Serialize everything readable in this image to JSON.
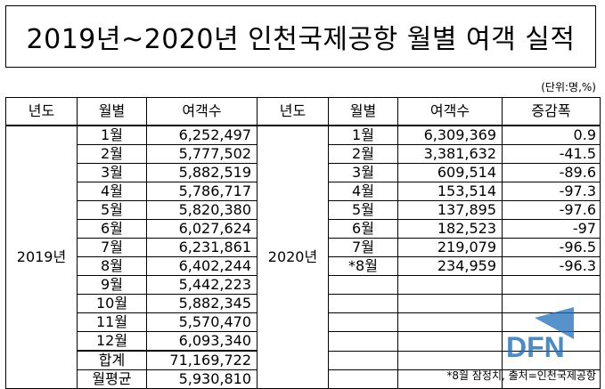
{
  "title": "2019년~2020년 인천국제공항 월별 여객 실적",
  "unit": "(단위:명,%)",
  "note": "*8월 잠정치, 출처=인천국제공항",
  "headers": {
    "year": "년도",
    "month": "월별",
    "passengers": "여객수",
    "year2": "년도",
    "month2": "월별",
    "passengers2": "여객수",
    "change": "증감폭"
  },
  "y2019": {
    "label": "2019년",
    "rows": [
      {
        "month": "1월",
        "value": "6,252,497"
      },
      {
        "month": "2월",
        "value": "5,777,502"
      },
      {
        "month": "3월",
        "value": "5,882,519"
      },
      {
        "month": "4월",
        "value": "5,786,717"
      },
      {
        "month": "5월",
        "value": "5,820,380"
      },
      {
        "month": "6월",
        "value": "6,027,624"
      },
      {
        "month": "7월",
        "value": "6,231,861"
      },
      {
        "month": "8월",
        "value": "6,402,244"
      },
      {
        "month": "9월",
        "value": "5,442,223"
      },
      {
        "month": "10월",
        "value": "5,882,345"
      },
      {
        "month": "11월",
        "value": "5,570,470"
      },
      {
        "month": "12월",
        "value": "6,093,340"
      }
    ],
    "total_label": "합계",
    "total_value": "71,169,722",
    "avg_label": "월평균",
    "avg_value": "5,930,810"
  },
  "y2020": {
    "label": "2020년",
    "rows": [
      {
        "month": "1월",
        "value": "6,309,369",
        "change": "0.9"
      },
      {
        "month": "2월",
        "value": "3,381,632",
        "change": "-41.5"
      },
      {
        "month": "3월",
        "value": "609,514",
        "change": "-89.6"
      },
      {
        "month": "4월",
        "value": "153,514",
        "change": "-97.3"
      },
      {
        "month": "5월",
        "value": "137,895",
        "change": "-97.6"
      },
      {
        "month": "6월",
        "value": "182,523",
        "change": "-97"
      },
      {
        "month": "7월",
        "value": "219,079",
        "change": "-96.5"
      },
      {
        "month": "*8월",
        "value": "234,959",
        "change": "-96.3"
      }
    ]
  },
  "watermark": {
    "text": "DFN",
    "color": "#1f6fb8"
  }
}
